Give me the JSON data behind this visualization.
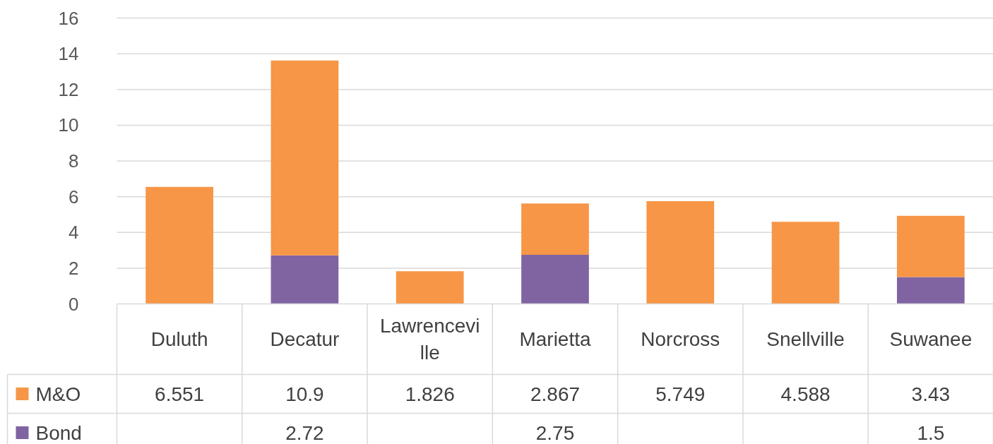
{
  "chart_data": {
    "type": "bar",
    "stacked": true,
    "data_labels": true,
    "legend": "bottom",
    "grid": "y",
    "categories": [
      "Duluth",
      "Decatur",
      "Lawrenceville",
      "Marietta",
      "Norcross",
      "Snellville",
      "Suwanee"
    ],
    "series": [
      {
        "name": "Bond",
        "color": "#8064a2",
        "values": [
          null,
          2.72,
          null,
          2.75,
          null,
          null,
          1.5
        ]
      },
      {
        "name": "M&O",
        "color": "#f79646",
        "values": [
          6.551,
          10.9,
          1.826,
          2.867,
          5.749,
          4.588,
          3.43
        ]
      }
    ],
    "ylim": [
      0,
      16
    ],
    "yticks": [
      0,
      2,
      4,
      6,
      8,
      10,
      12,
      14,
      16
    ]
  }
}
